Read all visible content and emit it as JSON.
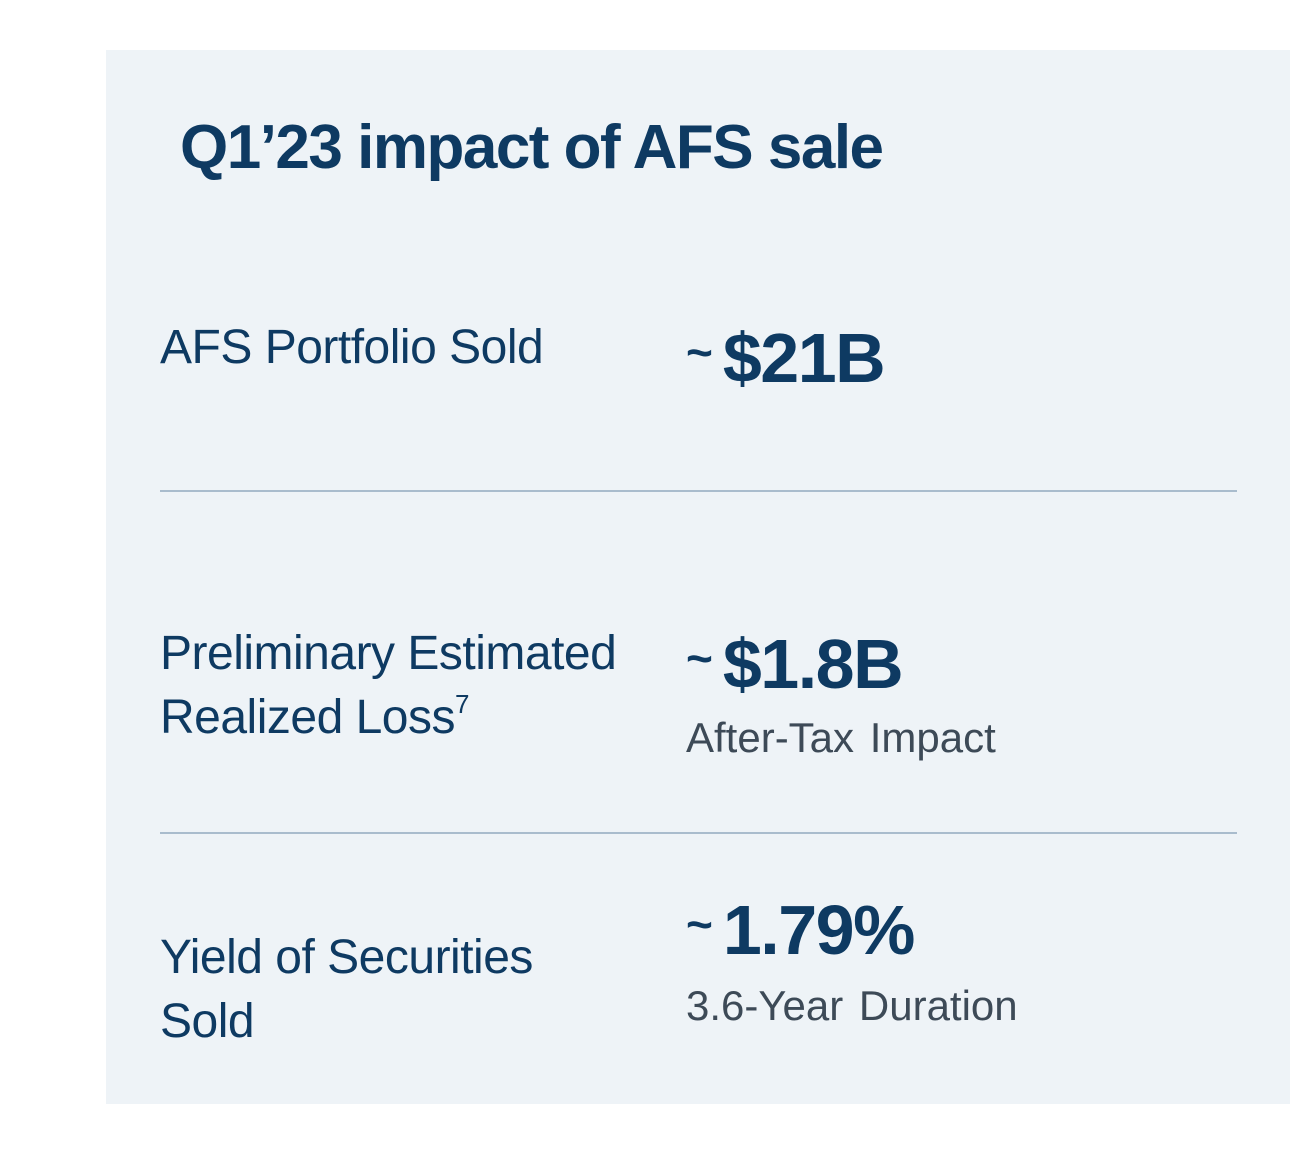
{
  "title": "Q1’23 impact of AFS sale",
  "rows": [
    {
      "label_lines": [
        "AFS Portfolio Sold"
      ],
      "footnote": "",
      "tilde": "~",
      "value": "$21B",
      "sub": ""
    },
    {
      "label_lines": [
        "Preliminary Estimated",
        "Realized Loss"
      ],
      "footnote": "7",
      "tilde": "~",
      "value": "$1.8B",
      "sub": "After-Tax  Impact"
    },
    {
      "label_lines": [
        "Yield of Securities",
        "Sold"
      ],
      "footnote": "",
      "tilde": "~",
      "value": "1.79%",
      "sub": "3.6-Year Duration"
    }
  ],
  "colors": {
    "panel_background": "#eef3f7",
    "primary_text": "#0e3a62",
    "secondary_text": "#3d4a57",
    "divider": "#a9bccd"
  }
}
